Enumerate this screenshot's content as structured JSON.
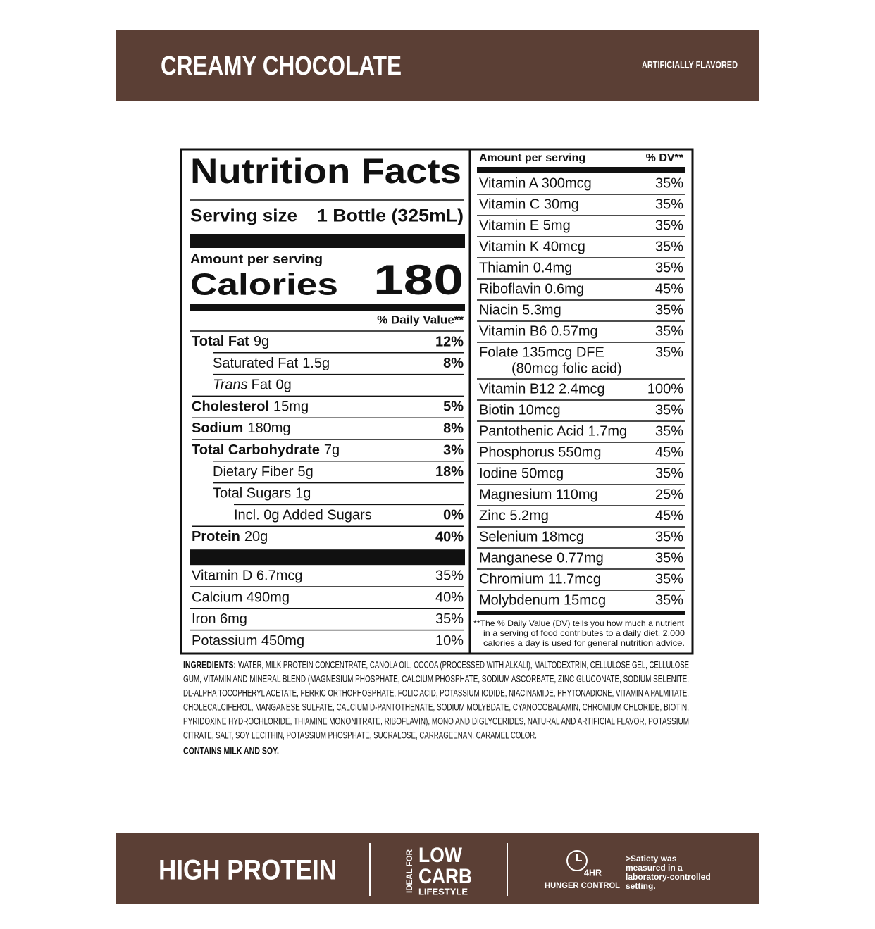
{
  "header": {
    "title": "CREAMY CHOCOLATE",
    "flavor": "ARTIFICIALLY FLAVORED"
  },
  "facts": {
    "title": "Nutrition Facts",
    "serving_label": "Serving size",
    "serving_value": "1 Bottle (325mL)",
    "amount_label": "Amount per serving",
    "calories_label": "Calories",
    "calories": "180",
    "dv_header": "% Daily Value**",
    "rows": [
      {
        "name": "Total Fat",
        "amount": "9g",
        "dv": "12%",
        "bold": true,
        "indent": 0
      },
      {
        "name": "Saturated Fat",
        "amount": "1.5g",
        "dv": "8%",
        "indent": 1
      },
      {
        "italic": "Trans",
        "name": "Fat",
        "amount": "0g",
        "indent": 1
      },
      {
        "name": "Cholesterol",
        "amount": "15mg",
        "dv": "5%",
        "bold": true,
        "indent": 0
      },
      {
        "name": "Sodium",
        "amount": "180mg",
        "dv": "8%",
        "bold": true,
        "indent": 0
      },
      {
        "name": "Total Carbohydrate",
        "amount": "7g",
        "dv": "3%",
        "bold": true,
        "indent": 0
      },
      {
        "name": "Dietary Fiber",
        "amount": "5g",
        "dv": "18%",
        "indent": 1
      },
      {
        "name": "Total Sugars",
        "amount": "1g",
        "indent": 1
      },
      {
        "name": "Incl. 0g Added Sugars",
        "dv": "0%",
        "indent": 2
      },
      {
        "name": "Protein",
        "amount": "20g",
        "dv": "40%",
        "bold": true,
        "indent": 0
      }
    ],
    "minerals": [
      {
        "name": "Vitamin D 6.7mcg",
        "dv": "35%"
      },
      {
        "name": "Calcium 490mg",
        "dv": "40%"
      },
      {
        "name": "Iron 6mg",
        "dv": "35%"
      },
      {
        "name": "Potassium 450mg",
        "dv": "10%"
      }
    ]
  },
  "vitamins": {
    "amount_label": "Amount per serving",
    "dv_header": "% DV**",
    "rows": [
      {
        "name": "Vitamin A 300mcg",
        "dv": "35%"
      },
      {
        "name": "Vitamin C 30mg",
        "dv": "35%"
      },
      {
        "name": "Vitamin E 5mg",
        "dv": "35%"
      },
      {
        "name": "Vitamin K 40mcg",
        "dv": "35%"
      },
      {
        "name": "Thiamin 0.4mg",
        "dv": "35%"
      },
      {
        "name": "Riboflavin 0.6mg",
        "dv": "45%"
      },
      {
        "name": "Niacin 5.3mg",
        "dv": "35%"
      },
      {
        "name": "Vitamin B6 0.57mg",
        "dv": "35%"
      },
      {
        "name": "Folate 135mcg DFE",
        "note": "(80mcg folic acid)",
        "dv": "35%"
      },
      {
        "name": "Vitamin B12 2.4mcg",
        "dv": "100%"
      },
      {
        "name": "Biotin 10mcg",
        "dv": "35%"
      },
      {
        "name": "Pantothenic Acid 1.7mg",
        "dv": "35%"
      },
      {
        "name": "Phosphorus 550mg",
        "dv": "45%"
      },
      {
        "name": "Iodine 50mcg",
        "dv": "35%"
      },
      {
        "name": "Magnesium 110mg",
        "dv": "25%"
      },
      {
        "name": "Zinc 5.2mg",
        "dv": "45%"
      },
      {
        "name": "Selenium 18mcg",
        "dv": "35%"
      },
      {
        "name": "Manganese 0.77mg",
        "dv": "35%"
      },
      {
        "name": "Chromium 11.7mcg",
        "dv": "35%"
      },
      {
        "name": "Molybdenum 15mcg",
        "dv": "35%"
      }
    ],
    "footnote": [
      "**The % Daily Value (DV) tells you how much a nutrient",
      "in a serving of food contributes to a daily diet. 2,000",
      "calories a day is used for general nutrition advice."
    ]
  },
  "ingredients": {
    "label": "INGREDIENTS:",
    "lines": [
      "WATER, MILK PROTEIN CONCENTRATE, CANOLA OIL, COCOA (PROCESSED WITH ALKALI), MALTODEXTRIN, CELLULOSE GEL, CELLULOSE",
      "GUM, VITAMIN AND MINERAL BLEND (MAGNESIUM PHOSPHATE, CALCIUM PHOSPHATE, SODIUM ASCORBATE, ZINC GLUCONATE, SODIUM SELENITE,",
      "DL-ALPHA TOCOPHERYL ACETATE, FERRIC ORTHOPHOSPHATE, FOLIC ACID, POTASSIUM IODIDE, NIACINAMIDE, PHYTONADIONE, VITAMIN A PALMITATE,",
      "CHOLECALCIFEROL, MANGANESE SULFATE, CALCIUM D-PANTOTHENATE, SODIUM MOLYBDATE, CYANOCOBALAMIN, CHROMIUM CHLORIDE, BIOTIN,",
      "PYRIDOXINE HYDROCHLORIDE, THIAMINE MONONITRATE, RIBOFLAVIN), MONO AND DIGLYCERIDES, NATURAL AND ARTIFICIAL FLAVOR, POTASSIUM",
      "CITRATE, SALT, SOY LECITHIN, POTASSIUM PHOSPHATE, SUCRALOSE, CARRAGEENAN, CARAMEL COLOR."
    ],
    "allergens": "CONTAINS MILK AND SOY."
  },
  "footer": {
    "claim": "HIGH PROTEIN",
    "ideal_for": "IDEAL FOR",
    "low": "LOW",
    "carb": "CARB",
    "lifestyle": "LIFESTYLE",
    "hours": "4HR",
    "hunger": "HUNGER CONTROL",
    "satiety": [
      ">Satiety was",
      "measured in a",
      "laboratory-controlled",
      "setting."
    ]
  }
}
